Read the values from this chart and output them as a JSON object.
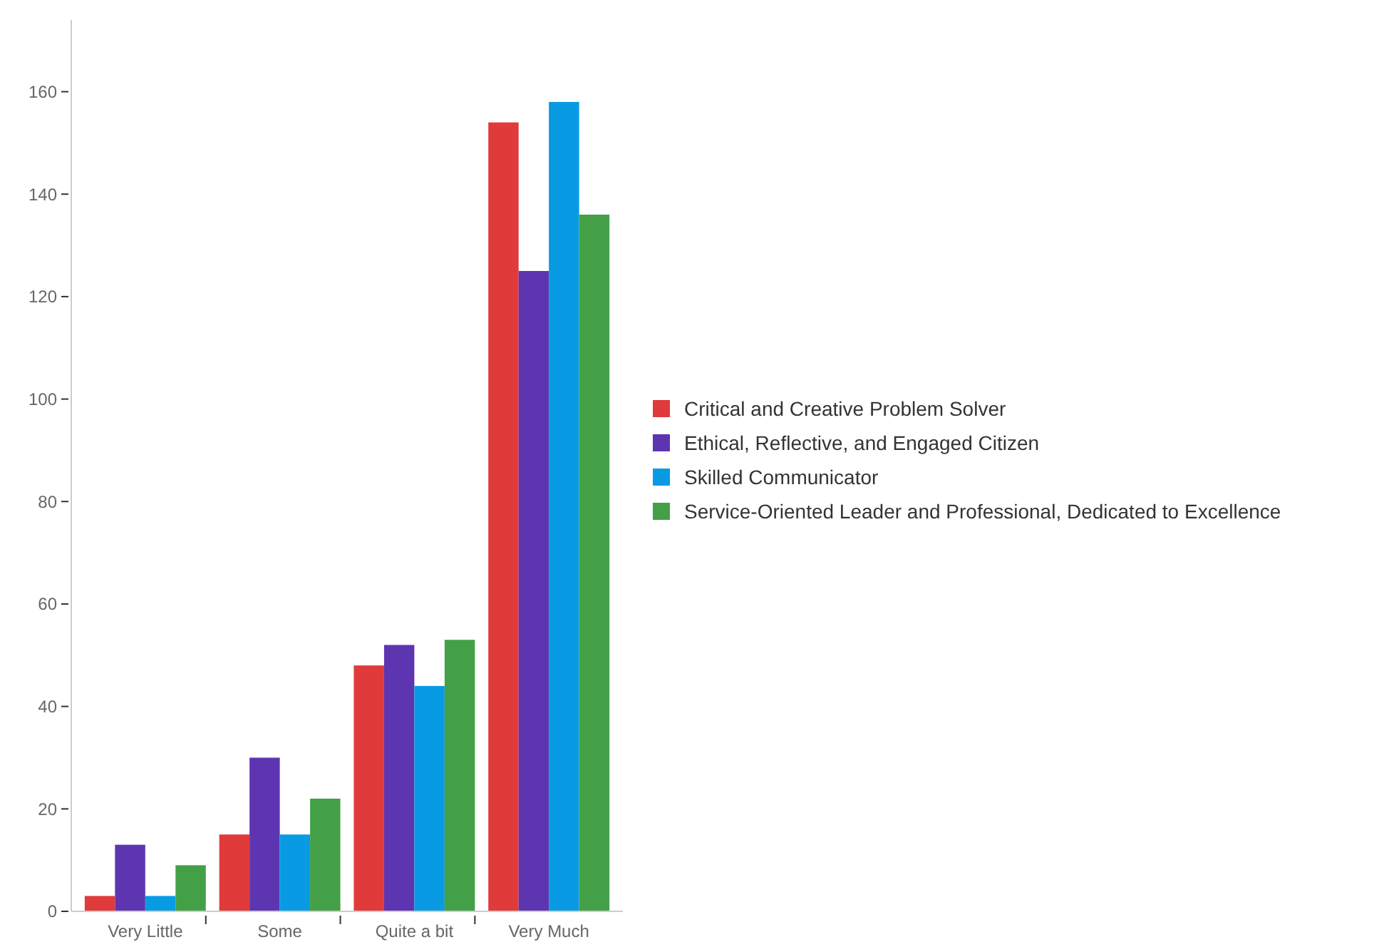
{
  "chart_data": {
    "type": "bar",
    "categories": [
      "Very Little",
      "Some",
      "Quite a bit",
      "Very Much"
    ],
    "series": [
      {
        "name": "Critical and Creative Problem Solver",
        "color": "#e03a3a",
        "values": [
          3,
          15,
          48,
          154
        ]
      },
      {
        "name": "Ethical, Reflective, and Engaged Citizen",
        "color": "#5e35b1",
        "values": [
          13,
          30,
          52,
          125
        ]
      },
      {
        "name": "Skilled Communicator",
        "color": "#089be3",
        "values": [
          3,
          15,
          44,
          158
        ]
      },
      {
        "name": "Service-Oriented Leader and Professional, Dedicated to Excellence",
        "color": "#43a047",
        "values": [
          9,
          22,
          53,
          136
        ]
      }
    ],
    "ylim": [
      0,
      174
    ],
    "yticks": [
      0,
      20,
      40,
      60,
      80,
      100,
      120,
      140,
      160
    ],
    "grid": false,
    "legend": "right"
  }
}
